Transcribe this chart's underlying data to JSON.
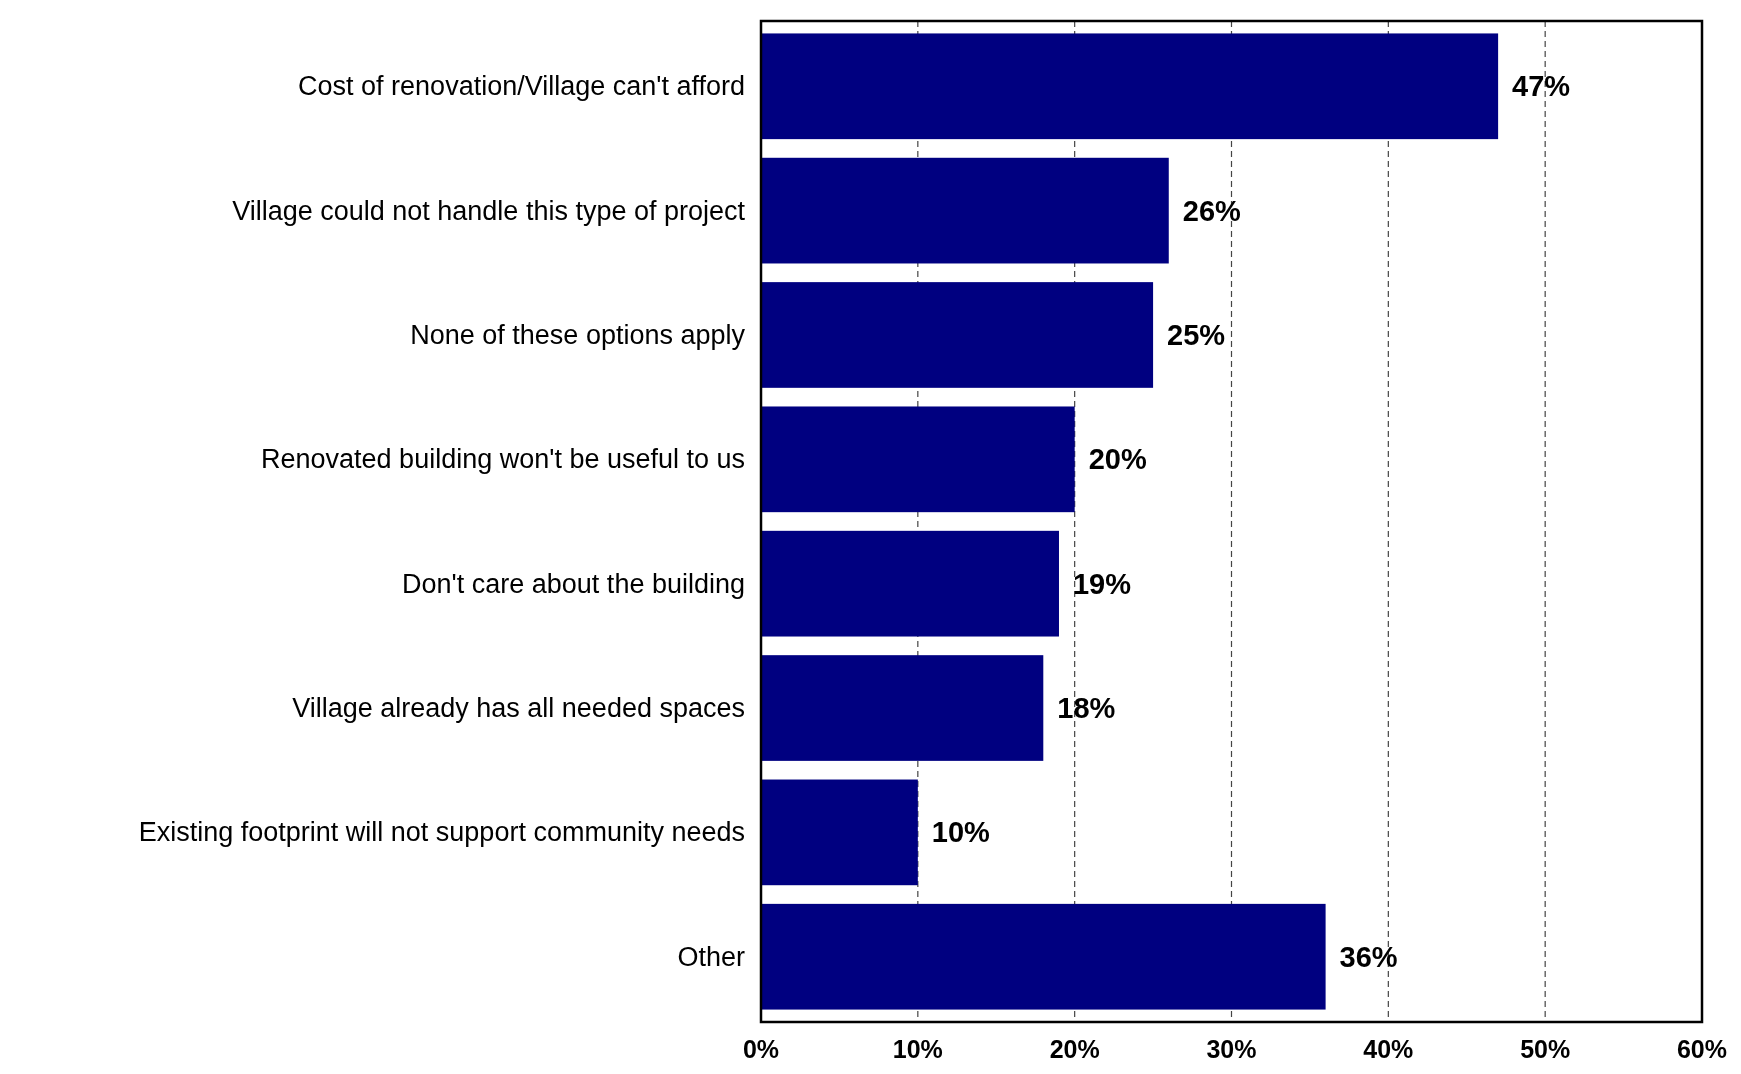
{
  "chart_data": {
    "type": "bar",
    "orientation": "horizontal",
    "categories": [
      "Cost of renovation/Village can't afford",
      "Village could not handle this type of project",
      "None of these options apply",
      "Renovated building won't be useful to us",
      "Don't care about the building",
      "Village already has all needed spaces",
      "Existing footprint will not support community needs",
      "Other"
    ],
    "values": [
      47,
      26,
      25,
      20,
      19,
      18,
      10,
      36
    ],
    "value_labels": [
      "47%",
      "26%",
      "25%",
      "20%",
      "19%",
      "18%",
      "10%",
      "36%"
    ],
    "color": "#000080",
    "xlim": [
      0,
      60
    ],
    "xticks": [
      {
        "value": 0,
        "label": "0%"
      },
      {
        "value": 10,
        "label": "10%"
      },
      {
        "value": 20,
        "label": "20%"
      },
      {
        "value": 30,
        "label": "30%"
      },
      {
        "value": 40,
        "label": "40%"
      },
      {
        "value": 50,
        "label": "50%"
      },
      {
        "value": 60,
        "label": "60%"
      }
    ],
    "grid": "x",
    "line_style": "dashed"
  }
}
